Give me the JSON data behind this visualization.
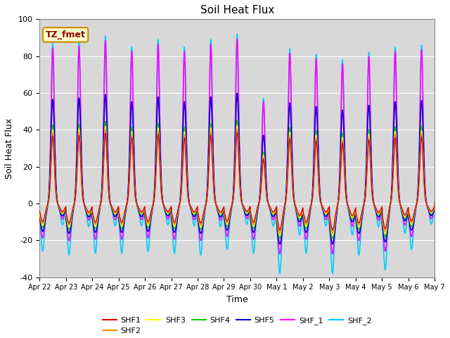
{
  "title": "Soil Heat Flux",
  "xlabel": "Time",
  "ylabel": "Soil Heat Flux",
  "ylim": [
    -40,
    100
  ],
  "xtick_labels": [
    "Apr 22",
    "Apr 23",
    "Apr 24",
    "Apr 25",
    "Apr 26",
    "Apr 27",
    "Apr 28",
    "Apr 29",
    "Apr 30",
    "May 1",
    "May 2",
    "May 3",
    "May 4",
    "May 5",
    "May 6",
    "May 7"
  ],
  "ytick_values": [
    -40,
    -20,
    0,
    20,
    40,
    60,
    80,
    100
  ],
  "series_colors": {
    "SHF1": "#dd0000",
    "SHF2": "#ff8800",
    "SHF3": "#ffff00",
    "SHF4": "#00cc00",
    "SHF5": "#0000cc",
    "SHF_1": "#ff00ff",
    "SHF_2": "#00ccff"
  },
  "annotation_text": "TZ_fmet",
  "annotation_bg": "#ffffcc",
  "annotation_border": "#cc8800",
  "annotation_text_color": "#8b0000",
  "plot_bg": "#d8d8d8",
  "n_days": 15,
  "points_per_day": 288,
  "day_peaks_shf2": [
    87,
    88,
    91,
    85,
    89,
    85,
    89,
    92,
    57,
    84,
    81,
    78,
    82,
    85,
    86
  ],
  "day_troughs_shf2": [
    -26,
    -28,
    -27,
    -27,
    -26,
    -27,
    -28,
    -25,
    -27,
    -38,
    -27,
    -38,
    -28,
    -36,
    -25
  ],
  "peak_scales": {
    "SHF1": 0.42,
    "SHF2": 0.44,
    "SHF3": 0.46,
    "SHF4": 0.49,
    "SHF5": 0.65,
    "SHF_1": 0.97,
    "SHF_2": 1.0
  },
  "trough_scales": {
    "SHF1": 0.38,
    "SHF2": 0.42,
    "SHF3": 0.46,
    "SHF4": 0.5,
    "SHF5": 0.58,
    "SHF_1": 0.72,
    "SHF_2": 1.0
  },
  "peak_widths": {
    "SHF1": 0.065,
    "SHF2": 0.065,
    "SHF3": 0.065,
    "SHF4": 0.065,
    "SHF5": 0.07,
    "SHF_1": 0.06,
    "SHF_2": 0.055
  },
  "trough_widths": {
    "SHF1": 0.09,
    "SHF2": 0.09,
    "SHF3": 0.09,
    "SHF4": 0.09,
    "SHF5": 0.1,
    "SHF_1": 0.08,
    "SHF_2": 0.07
  },
  "series_order": [
    "SHF_2",
    "SHF_1",
    "SHF5",
    "SHF4",
    "SHF3",
    "SHF2",
    "SHF1"
  ],
  "linewidths": {
    "SHF1": 1.0,
    "SHF2": 1.0,
    "SHF3": 1.0,
    "SHF4": 1.0,
    "SHF5": 1.2,
    "SHF_1": 1.2,
    "SHF_2": 1.2
  }
}
